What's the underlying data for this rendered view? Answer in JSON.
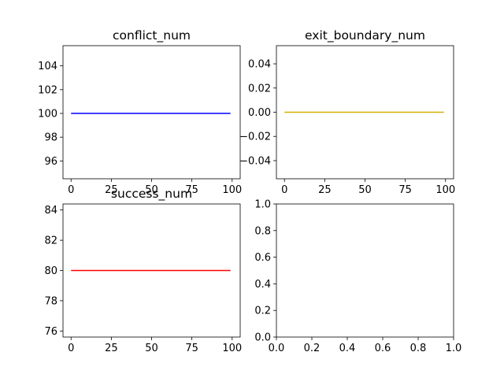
{
  "chart_data": [
    {
      "type": "line",
      "title": "conflict_num",
      "xlabel": "",
      "ylabel": "",
      "xlim": [
        -5,
        105
      ],
      "ylim": [
        94.5,
        105.7
      ],
      "xticks": [
        0,
        25,
        50,
        75,
        100
      ],
      "xtick_labels": [
        "0",
        "25",
        "50",
        "75",
        "100"
      ],
      "yticks": [
        96,
        98,
        100,
        102,
        104
      ],
      "ytick_labels": [
        "96",
        "98",
        "100",
        "102",
        "104"
      ],
      "grid": false,
      "series": [
        {
          "color": "#0000ff",
          "x": [
            0,
            99
          ],
          "y": [
            100,
            100
          ]
        }
      ]
    },
    {
      "type": "line",
      "title": "exit_boundary_num",
      "xlabel": "",
      "ylabel": "",
      "xlim": [
        -5,
        105
      ],
      "ylim": [
        -0.055,
        0.055
      ],
      "xticks": [
        0,
        25,
        50,
        75,
        100
      ],
      "xtick_labels": [
        "0",
        "25",
        "50",
        "75",
        "100"
      ],
      "yticks": [
        -0.04,
        -0.02,
        0,
        0.02,
        0.04
      ],
      "ytick_labels": [
        "−0.04",
        "−0.02",
        "0.00",
        "0.02",
        "0.04"
      ],
      "grid": false,
      "series": [
        {
          "color": "#d4b000",
          "x": [
            0,
            99
          ],
          "y": [
            0,
            0
          ]
        }
      ]
    },
    {
      "type": "line",
      "title": "success_num",
      "xlabel": "",
      "ylabel": "",
      "xlim": [
        -5,
        105
      ],
      "ylim": [
        75.6,
        84.4
      ],
      "xticks": [
        0,
        25,
        50,
        75,
        100
      ],
      "xtick_labels": [
        "0",
        "25",
        "50",
        "75",
        "100"
      ],
      "yticks": [
        76,
        78,
        80,
        82,
        84
      ],
      "ytick_labels": [
        "76",
        "78",
        "80",
        "82",
        "84"
      ],
      "grid": false,
      "series": [
        {
          "color": "#ff0000",
          "x": [
            0,
            99
          ],
          "y": [
            80,
            80
          ]
        }
      ]
    },
    {
      "type": "line",
      "title": "",
      "xlabel": "",
      "ylabel": "",
      "xlim": [
        0,
        1
      ],
      "ylim": [
        0,
        1
      ],
      "xticks": [
        0,
        0.2,
        0.4,
        0.6,
        0.8,
        1
      ],
      "xtick_labels": [
        "0.0",
        "0.2",
        "0.4",
        "0.6",
        "0.8",
        "1.0"
      ],
      "yticks": [
        0,
        0.2,
        0.4,
        0.6,
        0.8,
        1
      ],
      "ytick_labels": [
        "0.0",
        "0.2",
        "0.4",
        "0.6",
        "0.8",
        "1.0"
      ],
      "grid": false,
      "series": []
    }
  ]
}
